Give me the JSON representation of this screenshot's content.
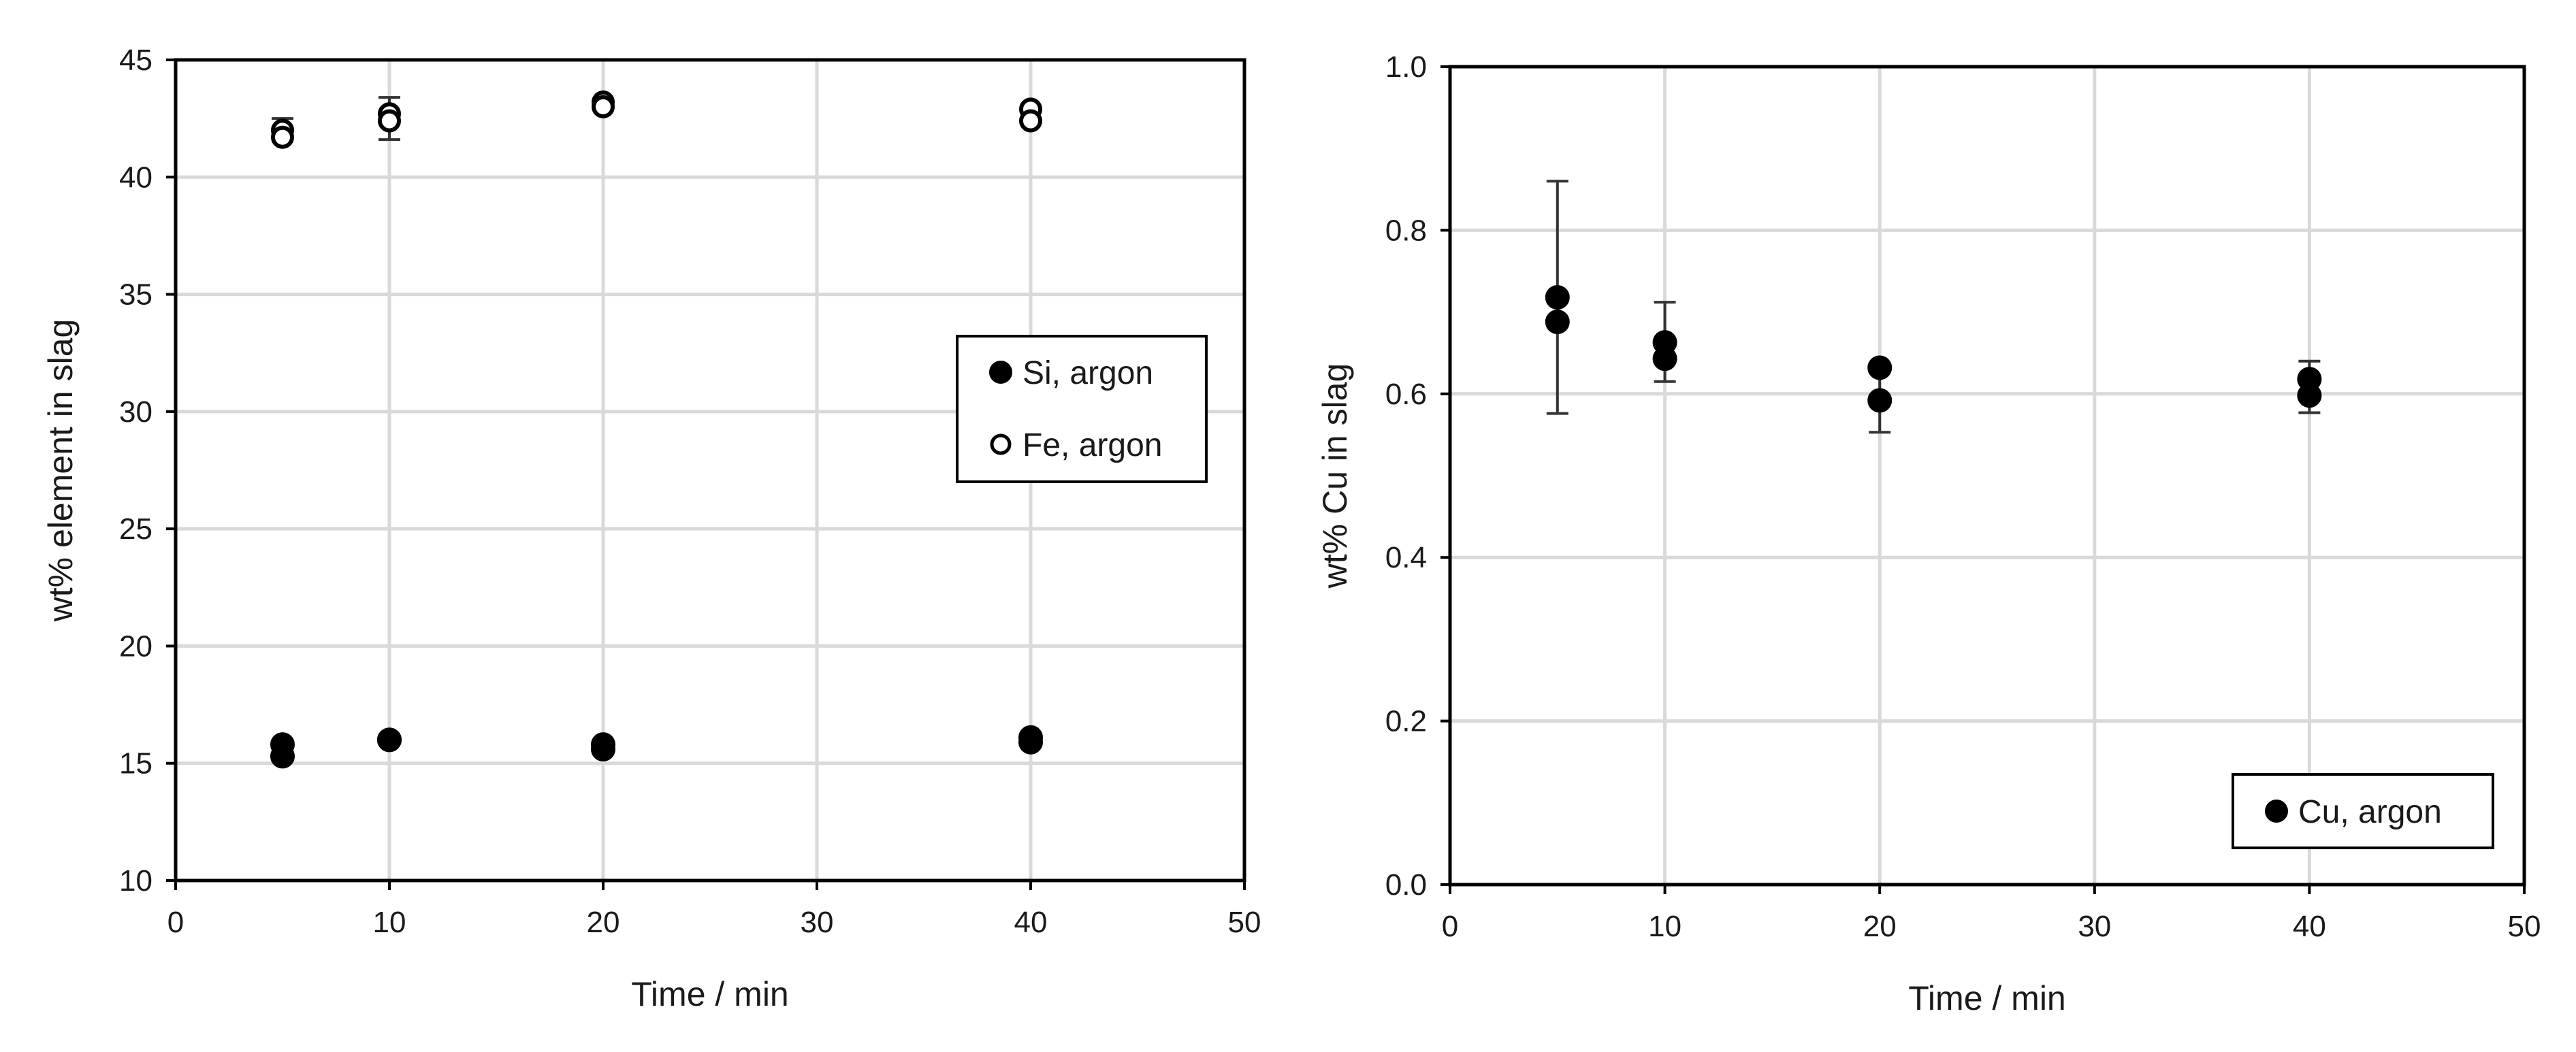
{
  "chart_data": [
    {
      "type": "scatter",
      "xlabel": "Time / min",
      "ylabel": "wt% element in slag",
      "xlim": [
        0,
        50
      ],
      "ylim": [
        10,
        45
      ],
      "xticks": [
        "0",
        "10",
        "20",
        "30",
        "40",
        "50"
      ],
      "yticks": [
        "10",
        "15",
        "20",
        "25",
        "30",
        "35",
        "40",
        "45"
      ],
      "grid": true,
      "legend_position": "right-middle",
      "series": [
        {
          "name": "Si, argon",
          "marker": "filled-circle",
          "color": "#000000",
          "points": [
            {
              "x": 5,
              "y": 15.8
            },
            {
              "x": 5,
              "y": 15.3
            },
            {
              "x": 10,
              "y": 16.0
            },
            {
              "x": 10,
              "y": 16.0
            },
            {
              "x": 20,
              "y": 15.8
            },
            {
              "x": 20,
              "y": 15.6
            },
            {
              "x": 40,
              "y": 16.1
            },
            {
              "x": 40,
              "y": 15.9
            }
          ],
          "error_bars": []
        },
        {
          "name": "Fe, argon",
          "marker": "open-circle",
          "color": "#000000",
          "points": [
            {
              "x": 5,
              "y": 42.0
            },
            {
              "x": 5,
              "y": 41.7
            },
            {
              "x": 10,
              "y": 42.7
            },
            {
              "x": 10,
              "y": 42.4
            },
            {
              "x": 20,
              "y": 43.2
            },
            {
              "x": 20,
              "y": 43.0
            },
            {
              "x": 40,
              "y": 42.9
            },
            {
              "x": 40,
              "y": 42.4
            }
          ],
          "error_bars": [
            {
              "x": 5,
              "low": 41.6,
              "high": 42.5
            },
            {
              "x": 10,
              "low": 41.6,
              "high": 43.4
            }
          ]
        }
      ]
    },
    {
      "type": "scatter",
      "xlabel": "Time / min",
      "ylabel": "wt% Cu in slag",
      "xlim": [
        0,
        50
      ],
      "ylim": [
        0.0,
        1.0
      ],
      "xticks": [
        "0",
        "10",
        "20",
        "30",
        "40",
        "50"
      ],
      "yticks": [
        "0.0",
        "0.2",
        "0.4",
        "0.6",
        "0.8",
        "1.0"
      ],
      "grid": true,
      "legend_position": "bottom-right",
      "series": [
        {
          "name": "Cu, argon",
          "marker": "filled-circle",
          "color": "#000000",
          "points": [
            {
              "x": 5,
              "y": 0.718
            },
            {
              "x": 5,
              "y": 0.688
            },
            {
              "x": 10,
              "y": 0.663
            },
            {
              "x": 10,
              "y": 0.643
            },
            {
              "x": 20,
              "y": 0.632
            },
            {
              "x": 20,
              "y": 0.592
            },
            {
              "x": 40,
              "y": 0.618
            },
            {
              "x": 40,
              "y": 0.598
            }
          ],
          "error_bars": [
            {
              "x": 5,
              "low": 0.576,
              "high": 0.86
            },
            {
              "x": 10,
              "low": 0.615,
              "high": 0.712
            },
            {
              "x": 20,
              "low": 0.553,
              "high": 0.632
            },
            {
              "x": 40,
              "low": 0.577,
              "high": 0.64
            }
          ]
        }
      ]
    }
  ]
}
